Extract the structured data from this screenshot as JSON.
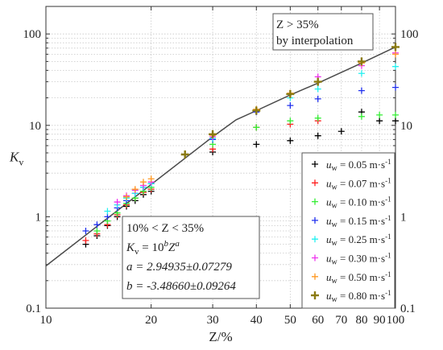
{
  "chart_data": {
    "type": "scatter",
    "x_scale": "log",
    "y_scale": "log",
    "xlim": [
      10,
      100
    ],
    "ylim": [
      0.1,
      200
    ],
    "xlabel": "Z/%",
    "ylabel": "K",
    "ylabel_sub": "v",
    "x_ticks": [
      {
        "v": 10,
        "label": "10"
      },
      {
        "v": 20,
        "label": "20"
      },
      {
        "v": 30,
        "label": "30"
      },
      {
        "v": 40,
        "label": "40"
      },
      {
        "v": 50,
        "label": "50"
      },
      {
        "v": 60,
        "label": "60"
      },
      {
        "v": 70,
        "label": "70"
      },
      {
        "v": 80,
        "label": "80"
      },
      {
        "v": 90,
        "label": "90"
      },
      {
        "v": 100,
        "label": "100"
      }
    ],
    "y_ticks": [
      {
        "v": 0.1,
        "label": "0.1"
      },
      {
        "v": 1,
        "label": "1"
      },
      {
        "v": 10,
        "label": "10"
      },
      {
        "v": 100,
        "label": "100"
      }
    ],
    "grid": true,
    "legend_position": "bottom-right",
    "series": [
      {
        "name": "u_w = 0.05 m·s⁻¹",
        "label_main": "u",
        "label_sub": "w",
        "label_rest": " = 0.05 m·s",
        "label_sup": "-1",
        "color": "#000000",
        "x": [
          13,
          14,
          15,
          16,
          17,
          18,
          19,
          20,
          30,
          40,
          50,
          60,
          70,
          80,
          90,
          100
        ],
        "y": [
          0.5,
          0.62,
          0.8,
          1.0,
          1.3,
          1.5,
          1.75,
          1.9,
          5.1,
          6.2,
          6.8,
          7.7,
          8.6,
          14,
          11.2,
          11.2
        ]
      },
      {
        "name": "u_w = 0.07 m·s⁻¹",
        "label_main": "u",
        "label_sub": "w",
        "label_rest": " = 0.07 m·s",
        "label_sup": "-1",
        "color": "#ff2020",
        "x": [
          13,
          14,
          15,
          16,
          17,
          18,
          19,
          20,
          30,
          40,
          50,
          60
        ],
        "y": [
          0.55,
          0.65,
          0.82,
          1.05,
          1.35,
          1.6,
          1.85,
          2.0,
          5.5,
          9.5,
          10.3,
          11.2
        ]
      },
      {
        "name": "u_w = 0.10 m·s⁻¹",
        "label_main": "u",
        "label_sub": "w",
        "label_rest": " = 0.10 m·s",
        "label_sup": "-1",
        "color": "#33ee33",
        "x": [
          14,
          15,
          16,
          17,
          18,
          19,
          20,
          30,
          40,
          50,
          60,
          80,
          90,
          100
        ],
        "y": [
          0.7,
          0.9,
          1.1,
          1.4,
          1.6,
          1.9,
          2.1,
          6.2,
          9.5,
          11.2,
          12,
          12.5,
          13,
          13
        ]
      },
      {
        "name": "u_w = 0.15 m·s⁻¹",
        "label_main": "u",
        "label_sub": "w",
        "label_rest": " = 0.15 m·s",
        "label_sup": "-1",
        "color": "#2030ee",
        "x": [
          13,
          14,
          15,
          16,
          17,
          18,
          19,
          20,
          30,
          40,
          50,
          60,
          80,
          100
        ],
        "y": [
          0.7,
          0.82,
          1.0,
          1.25,
          1.5,
          1.8,
          2.1,
          2.3,
          7.0,
          14,
          16.5,
          19.5,
          24,
          26
        ]
      },
      {
        "name": "u_w = 0.25 m·s⁻¹",
        "label_main": "u",
        "label_sub": "w",
        "label_rest": " = 0.25 m·s",
        "label_sup": "-1",
        "color": "#22f0f0",
        "x": [
          15,
          16,
          17,
          18,
          19,
          20,
          30,
          40,
          50,
          60,
          80,
          100
        ],
        "y": [
          1.15,
          1.35,
          1.6,
          1.8,
          2.1,
          2.3,
          7.2,
          14.5,
          20,
          25,
          37,
          44
        ]
      },
      {
        "name": "u_w = 0.30 m·s⁻¹",
        "label_main": "u",
        "label_sub": "w",
        "label_rest": " = 0.30 m·s",
        "label_sup": "-1",
        "color": "#ee33ee",
        "x": [
          16,
          17,
          18,
          19,
          20,
          30,
          40,
          50,
          60,
          80,
          100
        ],
        "y": [
          1.45,
          1.7,
          1.95,
          2.2,
          2.4,
          7.5,
          14.8,
          22,
          34,
          45,
          62
        ]
      },
      {
        "name": "u_w = 0.50 m·s⁻¹",
        "label_main": "u",
        "label_sub": "w",
        "label_rest": " = 0.50 m·s",
        "label_sup": "-1",
        "color": "#ff9922",
        "x": [
          17,
          18,
          19,
          20,
          30,
          40,
          50,
          60,
          80,
          100
        ],
        "y": [
          1.65,
          2.0,
          2.4,
          2.6,
          7.8,
          15,
          22.5,
          30,
          48,
          60
        ]
      },
      {
        "name": "u_w = 0.80 m·s⁻¹",
        "label_main": "u",
        "label_sub": "w",
        "label_rest": " = 0.80 m·s",
        "label_sup": "-1",
        "color": "#8a7a10",
        "x": [
          25,
          30,
          40,
          50,
          60,
          80,
          100
        ],
        "y": [
          4.8,
          8.0,
          14.5,
          22,
          30,
          50,
          72
        ]
      }
    ],
    "fit_line": {
      "color": "#4a4a4a",
      "x": [
        10,
        30,
        35,
        40,
        50,
        60,
        80,
        100
      ],
      "y": [
        0.29,
        7.5,
        11.5,
        14.5,
        21.5,
        29,
        48,
        72
      ]
    },
    "annotations": {
      "interp_box": {
        "line1": "Z > 35%",
        "line2": "by interpolation"
      },
      "fit_box": {
        "range_text": "10% < Z < 35%",
        "eq_lhs": "K",
        "eq_lhs_sub": "v",
        "eq_mid": " = 10",
        "eq_sup1": "b",
        "eq_z": "Z",
        "eq_sup2": "a",
        "a_line": "a = 2.94935±0.07279",
        "b_line": "b = -3.48660±0.09264"
      }
    }
  }
}
